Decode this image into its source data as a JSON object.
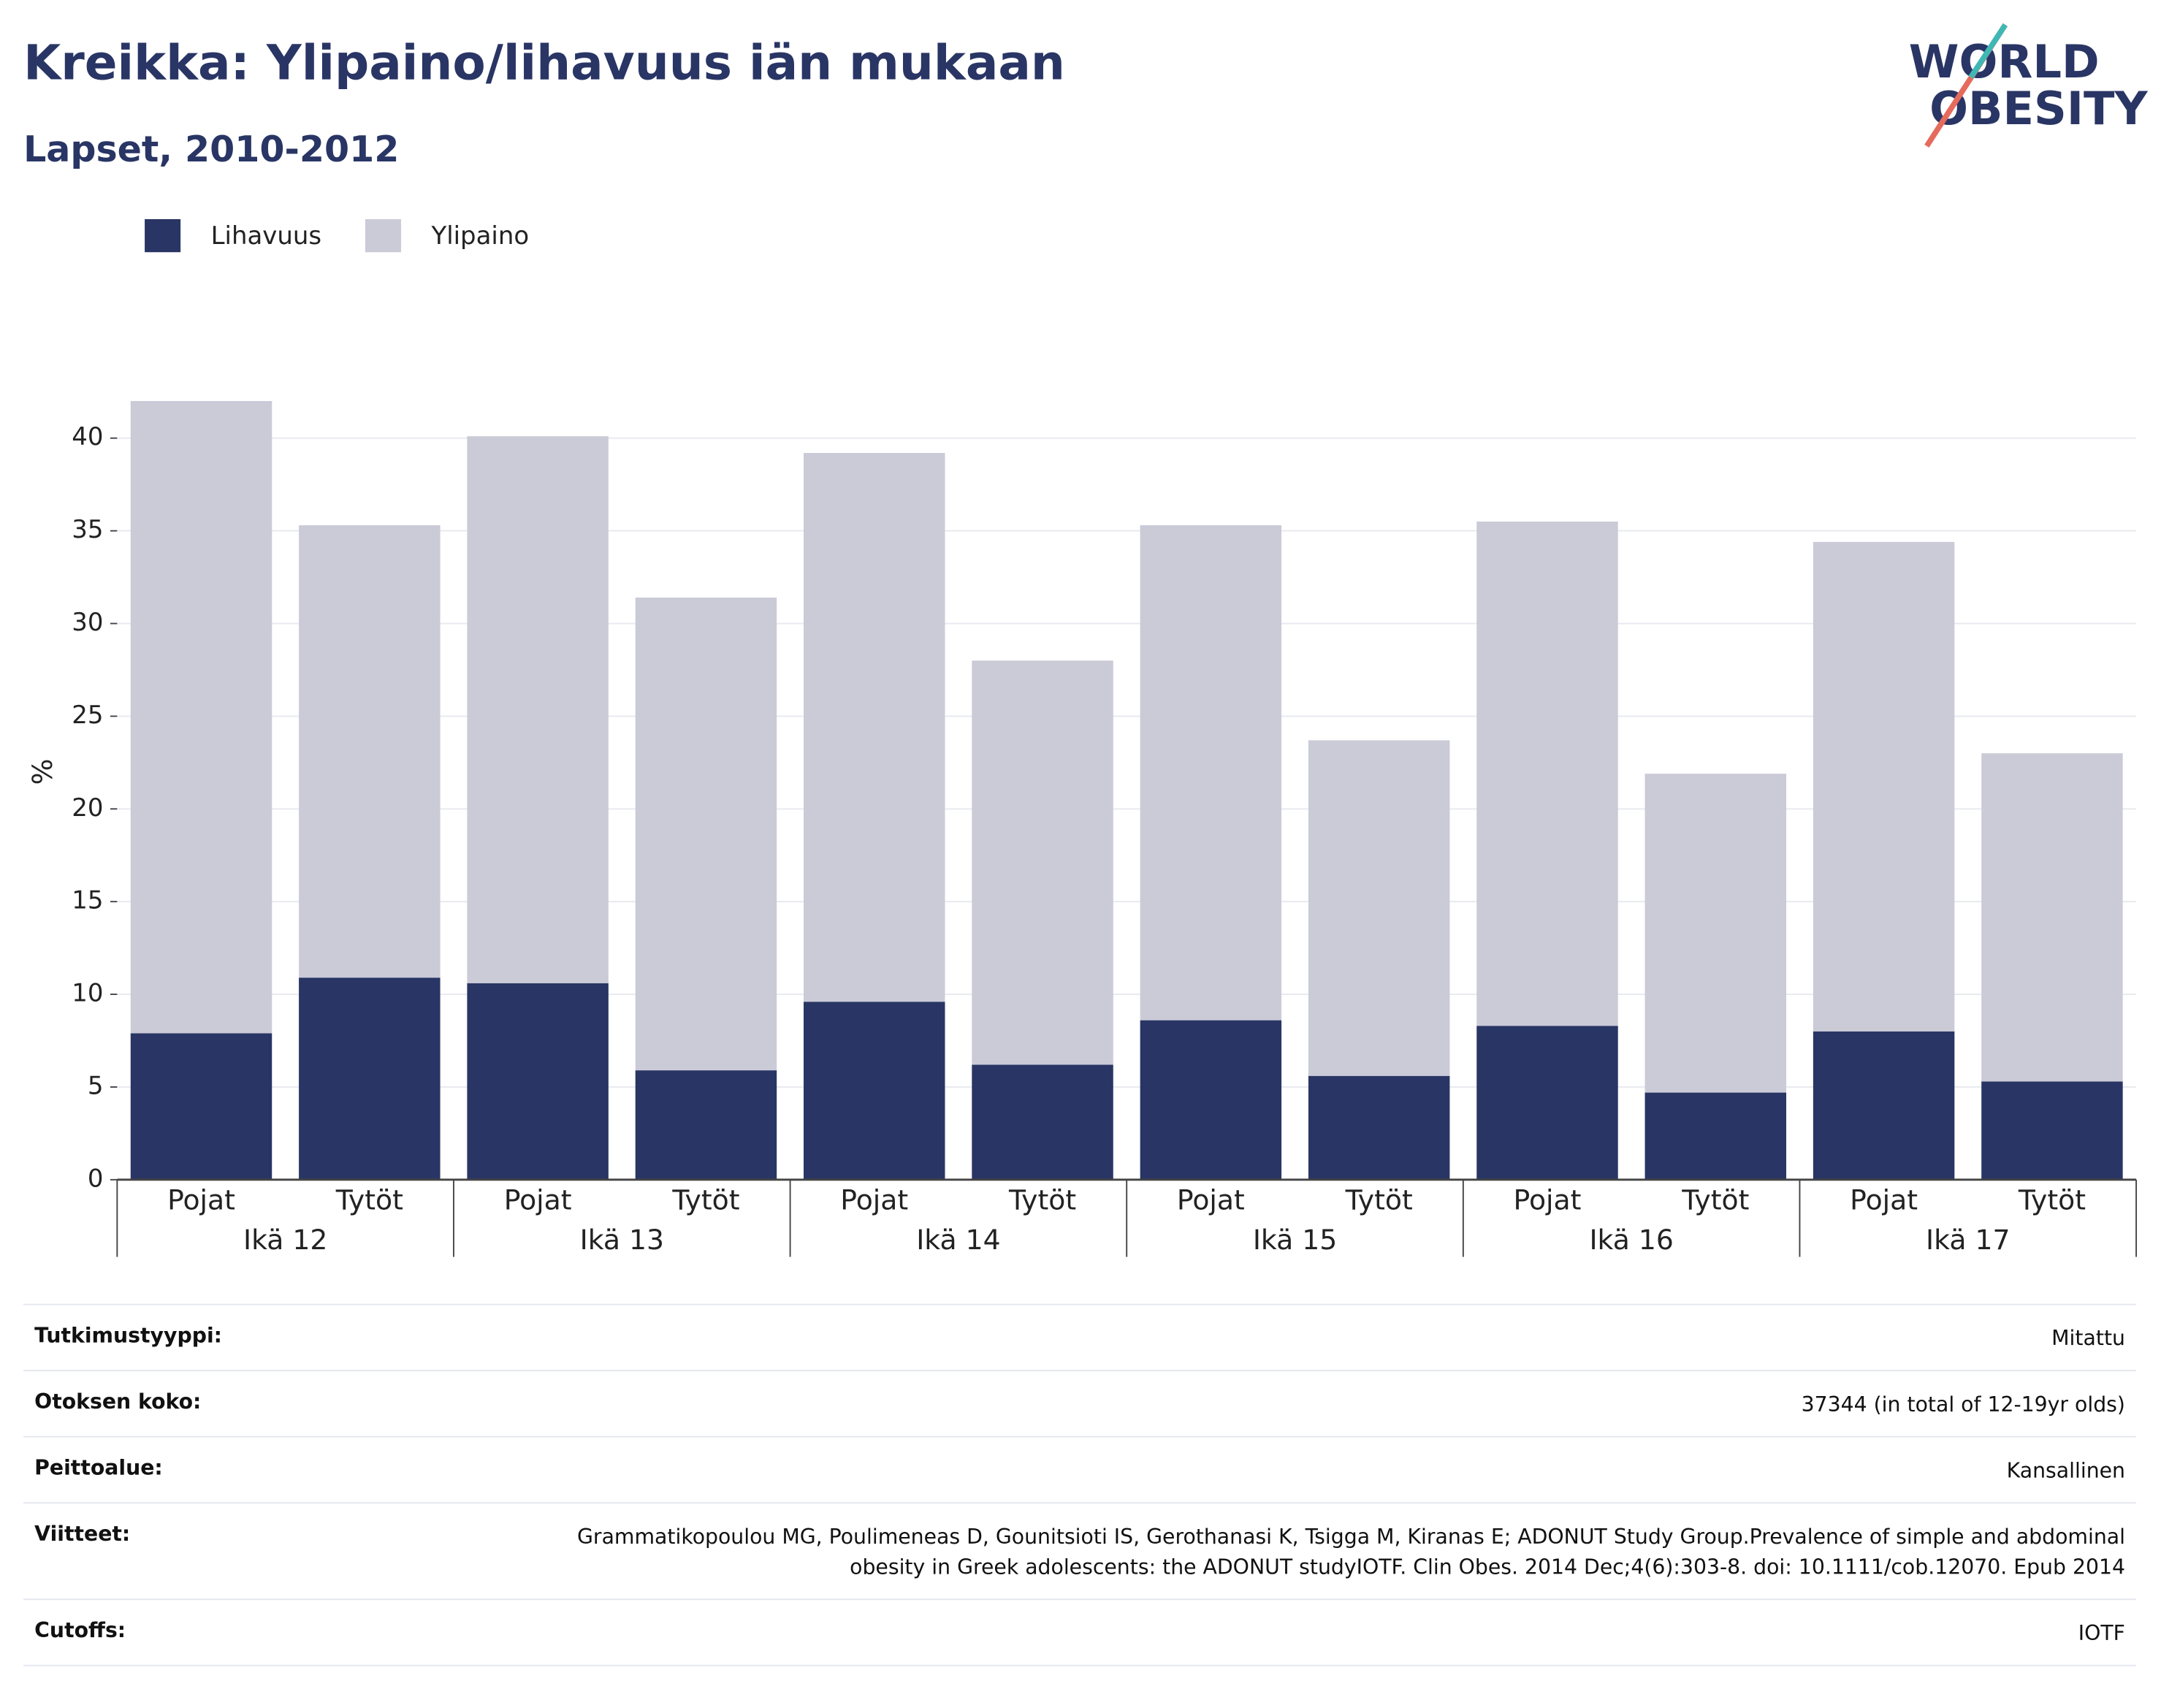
{
  "title": "Kreikka: Ylipaino/lihavuus iän mukaan",
  "subtitle": "Lapset, 2010-2012",
  "logo": [
    "WORLD",
    "OBESITY"
  ],
  "chart_data": {
    "type": "stacked_bar",
    "ylabel": "%",
    "categories": [
      "Pojat",
      "Tytöt",
      "Pojat",
      "Tytöt",
      "Pojat",
      "Tytöt",
      "Pojat",
      "Tytöt",
      "Pojat",
      "Tytöt",
      "Pojat",
      "Tytöt"
    ],
    "groups": [
      "Ikä 12",
      "Ikä 13",
      "Ikä 14",
      "Ikä 15",
      "Ikä 16",
      "Ikä 17"
    ],
    "series": [
      {
        "name": "Lihavuus",
        "color": "#293564",
        "values": [
          7.9,
          10.9,
          10.6,
          5.9,
          9.6,
          6.2,
          8.6,
          5.6,
          8.3,
          4.7,
          8.0,
          5.3
        ]
      },
      {
        "name": "Ylipaino",
        "color": "#cacbd7",
        "values": [
          34.1,
          24.4,
          29.5,
          25.5,
          29.6,
          21.8,
          26.7,
          18.1,
          27.2,
          17.2,
          26.4,
          17.7
        ]
      }
    ],
    "ylim": [
      0,
      42
    ],
    "yticks": [
      0,
      5,
      10,
      15,
      20,
      25,
      30,
      35,
      40
    ],
    "grid": true
  },
  "info": [
    {
      "label": "Tutkimustyyppi:",
      "value": "Mitattu"
    },
    {
      "label": "Otoksen koko:",
      "value": "37344 (in total of 12-19yr olds)"
    },
    {
      "label": "Peittoalue:",
      "value": "Kansallinen"
    },
    {
      "label": "Viitteet:",
      "value": "Grammatikopoulou MG, Poulimeneas D, Gounitsioti IS, Gerothanasi K, Tsigga M, Kiranas E; ADONUT Study Group.Prevalence of simple and abdominal obesity in Greek adolescents: the ADONUT studyIOTF. Clin Obes. 2014 Dec;4(6):303-8. doi: 10.1111/cob.12070. Epub 2014"
    },
    {
      "label": "Cutoffs:",
      "value": "IOTF"
    }
  ]
}
